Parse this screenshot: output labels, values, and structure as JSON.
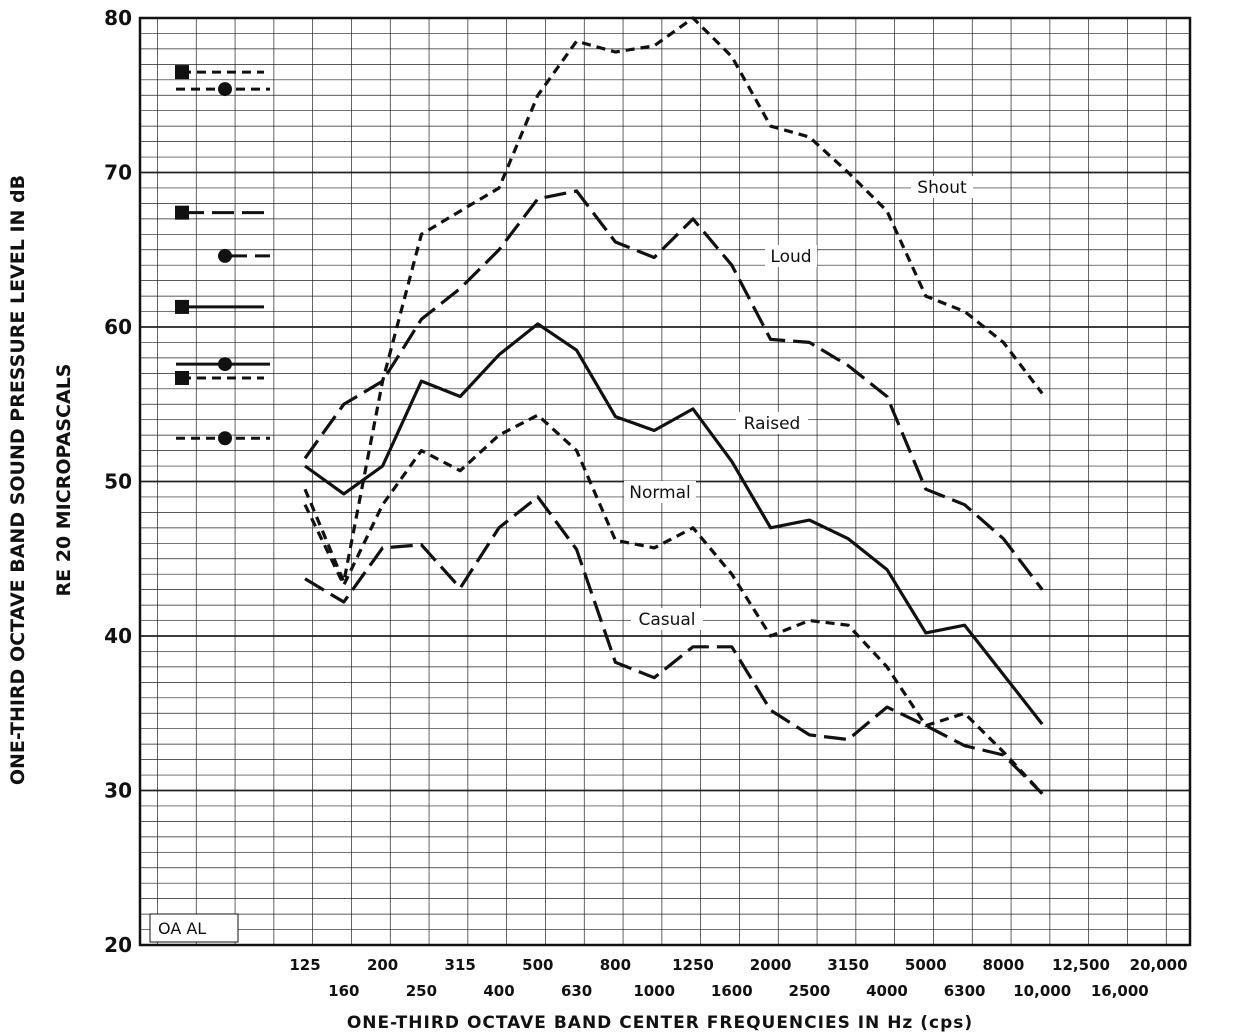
{
  "chart_data": {
    "type": "line",
    "xlabel": "ONE-THIRD OCTAVE BAND CENTER FREQUENCIES IN Hz (cps)",
    "ylabel_line1": "ONE-THIRD OCTAVE BAND SOUND PRESSURE LEVEL IN dB",
    "ylabel_line2": "RE 20 MICROPASCALS",
    "ylim": [
      20,
      80
    ],
    "yticks": [
      "20",
      "30",
      "40",
      "50",
      "60",
      "70",
      "80"
    ],
    "grid": true,
    "x_categories": [
      "125",
      "160",
      "200",
      "250",
      "315",
      "400",
      "500",
      "630",
      "800",
      "1000",
      "1250",
      "1600",
      "2000",
      "2500",
      "3150",
      "4000",
      "5000",
      "6300",
      "8000",
      "10,000",
      "12,500",
      "16,000",
      "20,000"
    ],
    "corner_label": "OA AL",
    "series": [
      {
        "name": "Shout",
        "dash": "short-dash",
        "values": [
          49.5,
          43.5,
          56.5,
          66,
          67.5,
          69,
          75,
          78.5,
          77.8,
          78.2,
          80,
          77.5,
          73,
          72.3,
          70,
          67.5,
          62,
          61,
          59,
          55.7
        ],
        "overall_marker": "square",
        "OA": 76.5,
        "a_weighted_marker": "circle",
        "AL": 75.4
      },
      {
        "name": "Loud",
        "dash": "long-dash",
        "values": [
          51.5,
          55,
          56.5,
          60.5,
          62.5,
          65,
          68.3,
          68.8,
          65.5,
          64.5,
          67,
          64,
          59.2,
          59,
          57.5,
          55.5,
          49.5,
          48.5,
          46.3,
          43
        ],
        "overall_marker": "square",
        "OA": 67.4,
        "a_weighted_marker": "circle",
        "AL": 64.6
      },
      {
        "name": "Raised",
        "dash": "solid",
        "values": [
          51,
          49.2,
          51,
          56.5,
          55.5,
          58.2,
          60.2,
          58.5,
          54.2,
          53.3,
          54.7,
          51.3,
          47,
          47.5,
          46.3,
          44.3,
          40.2,
          40.7,
          37.5,
          34.3
        ],
        "overall_marker": "square",
        "OA": 61.3,
        "a_weighted_marker": "circle",
        "AL": 57.6
      },
      {
        "name": "Normal",
        "dash": "short-dash",
        "values": [
          48.5,
          43.3,
          48.5,
          52,
          50.7,
          53,
          54.3,
          52,
          46.2,
          45.7,
          47,
          44,
          40,
          41,
          40.7,
          38,
          34.2,
          35,
          32.5,
          29.8
        ],
        "overall_marker": "square",
        "OA": 56.7,
        "a_weighted_marker": "circle",
        "AL": 52.8
      },
      {
        "name": "Casual",
        "dash": "long-dash",
        "values": [
          43.7,
          42.2,
          45.7,
          45.9,
          43.1,
          47,
          49,
          45.6,
          38.3,
          37.3,
          39.3,
          39.3,
          35.2,
          33.6,
          33.3,
          35.4,
          34.2,
          32.9,
          32.3,
          29.8
        ]
      }
    ]
  }
}
